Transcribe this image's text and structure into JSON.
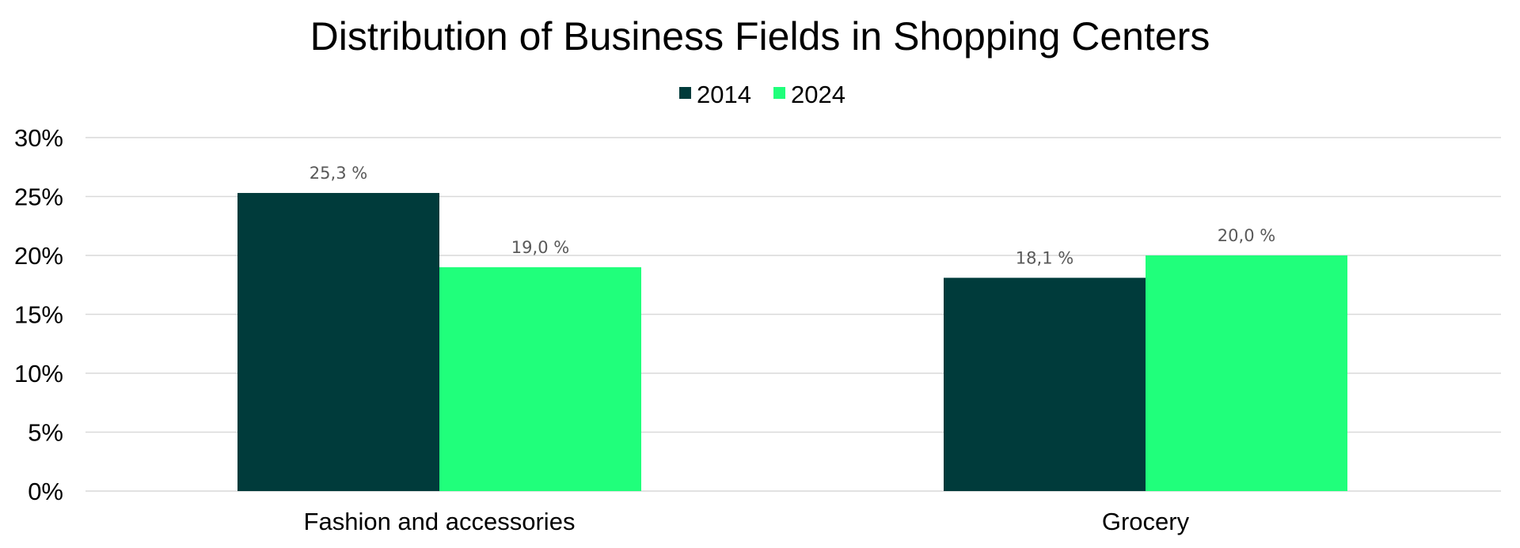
{
  "chart_data": {
    "type": "bar",
    "title": "Distribution of Business Fields in Shopping Centers",
    "xlabel": "",
    "ylabel": "",
    "categories": [
      "Fashion and accessories",
      "Grocery"
    ],
    "series": [
      {
        "name": "2014",
        "color": "#003b3b",
        "values": [
          25.3,
          18.1
        ],
        "labels": [
          "25,3 %",
          "18,1 %"
        ]
      },
      {
        "name": "2024",
        "color": "#20ff7b",
        "values": [
          19.0,
          20.0
        ],
        "labels": [
          "19,0 %",
          "20,0 %"
        ]
      }
    ],
    "ylim": [
      0,
      30
    ],
    "y_ticks": [
      0,
      5,
      10,
      15,
      20,
      25,
      30
    ],
    "y_tick_labels": [
      "0%",
      "5%",
      "10%",
      "15%",
      "20%",
      "25%",
      "30%"
    ],
    "grid": true,
    "legend_position": "top-center"
  }
}
